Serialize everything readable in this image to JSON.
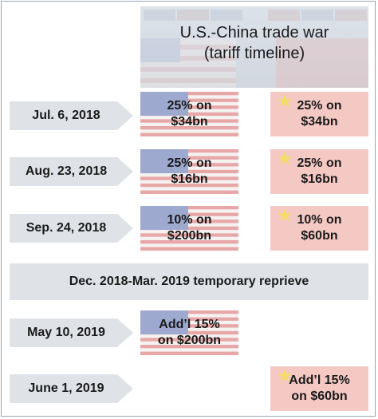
{
  "header": {
    "title_line1": "U.S.-China trade war",
    "title_line2": "(tariff timeline)"
  },
  "rows": [
    {
      "date": "Jul. 6, 2018",
      "us_line1": "25% on",
      "us_line2": "$34bn",
      "cn_line1": "25% on",
      "cn_line2": "$34bn"
    },
    {
      "date": "Aug. 23, 2018",
      "us_line1": "25% on",
      "us_line2": "$16bn",
      "cn_line1": "25% on",
      "cn_line2": "$16bn"
    },
    {
      "date": "Sep. 24, 2018",
      "us_line1": "10% on",
      "us_line2": "$200bn",
      "cn_line1": "10% on",
      "cn_line2": "$60bn"
    },
    {
      "date": "May 10, 2019",
      "us_line1": "Add’l 15%",
      "us_line2": "on $200bn"
    },
    {
      "date": "June 1, 2019",
      "cn_line1": "Add’l 15%",
      "cn_line2": "on $60bn"
    }
  ],
  "reprieve": "Dec. 2018-Mar. 2019 temporary reprieve",
  "colors": {
    "arrow": "#dfe3e8",
    "us_red": "#e8a7a7",
    "us_white": "#f5f2f2",
    "us_blue": "#9ea9cf",
    "cn_red": "#f4c9c3",
    "cn_star": "#f2dc6b"
  }
}
